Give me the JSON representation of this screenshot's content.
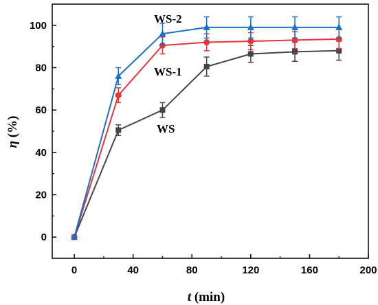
{
  "chart_data": {
    "type": "line",
    "xlabel_var": "t",
    "xlabel_unit": " (min)",
    "ylabel_var": "η",
    "ylabel_unit": " (%)",
    "xlim": [
      -15,
      200
    ],
    "ylim": [
      -10,
      110
    ],
    "xticks": [
      0,
      40,
      80,
      120,
      160,
      200
    ],
    "yticks": [
      0,
      20,
      40,
      60,
      80,
      100
    ],
    "x": [
      0,
      30,
      60,
      90,
      120,
      150,
      180
    ],
    "series": [
      {
        "name": "WS",
        "color": "#454545",
        "marker": "square",
        "values": [
          0,
          50.5,
          60,
          80.5,
          86.5,
          87.5,
          88
        ],
        "errors": [
          0,
          2.5,
          3.5,
          4.5,
          4.0,
          4.5,
          4.5
        ]
      },
      {
        "name": "WS-1",
        "color": "#e8343a",
        "marker": "circle",
        "values": [
          0,
          67,
          90.5,
          92,
          92.5,
          93,
          93.5
        ],
        "errors": [
          0,
          3.5,
          4.0,
          4.0,
          4.0,
          4.0,
          4.5
        ]
      },
      {
        "name": "WS-2",
        "color": "#1a6fc4",
        "marker": "triangle",
        "values": [
          0,
          76,
          96,
          99,
          99,
          99,
          99
        ],
        "errors": [
          0,
          4.0,
          5.0,
          5.0,
          5.0,
          5.0,
          5.0
        ]
      }
    ],
    "legend": "inline-labels",
    "grid": false
  }
}
